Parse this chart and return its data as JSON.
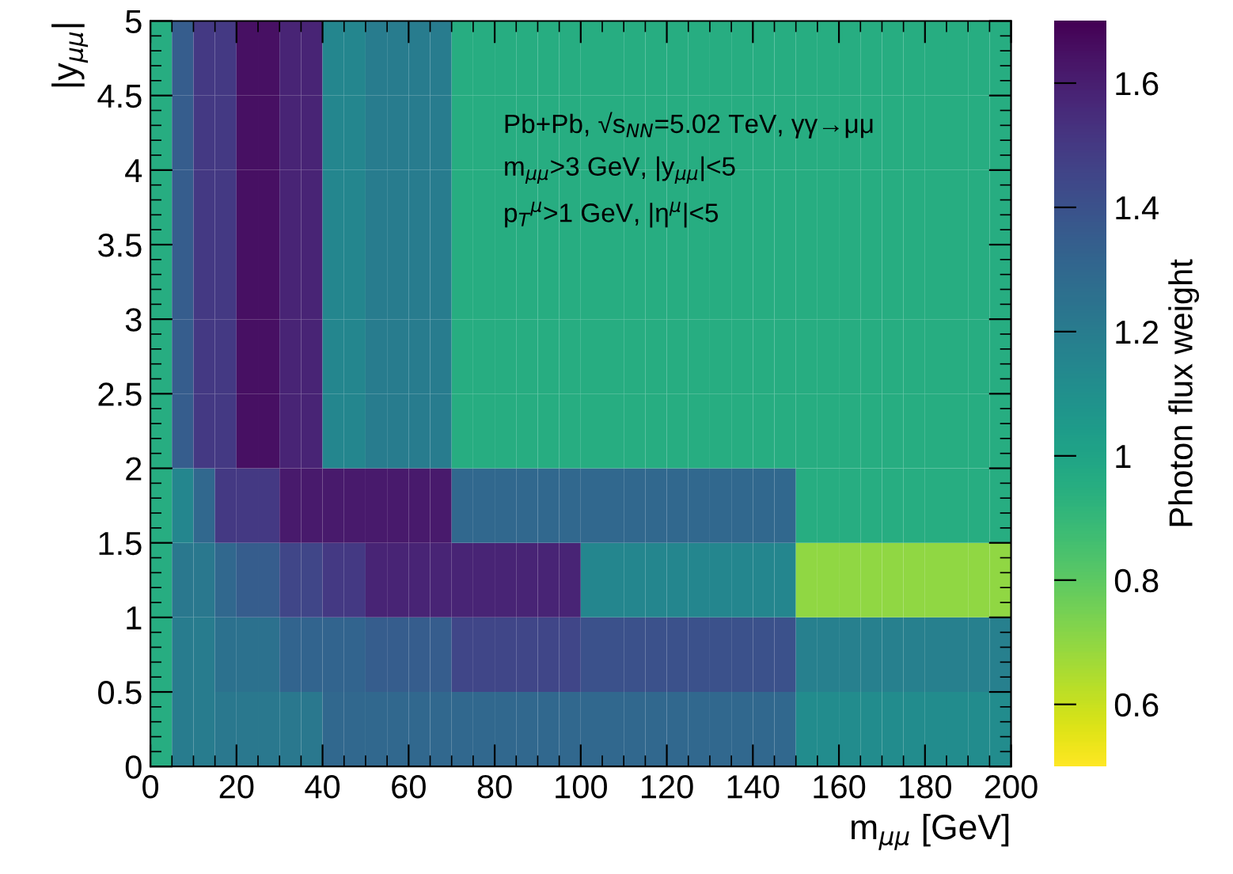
{
  "chart_data": {
    "type": "heatmap",
    "xlabel": "m$_{μμ}$ [GeV]",
    "ylabel": "|y$_{μμ}$|",
    "clabel": "Photon flux weight",
    "cells": [
      [
        0.95,
        1.35,
        1.5,
        1.5,
        1.65,
        1.65,
        1.58,
        1.58,
        1.15,
        1.15,
        1.2,
        1.2,
        1.2,
        1.2,
        0.95,
        0.95,
        0.95,
        0.95,
        0.95,
        0.95,
        0.95,
        0.95,
        0.95,
        0.95,
        0.95,
        0.95,
        0.95,
        0.95,
        0.95,
        0.95,
        0.95,
        0.95,
        0.95,
        0.95,
        0.95,
        0.95,
        0.95,
        0.95,
        0.95,
        0.95
      ],
      [
        0.95,
        1.35,
        1.5,
        1.5,
        1.65,
        1.65,
        1.58,
        1.58,
        1.15,
        1.15,
        1.2,
        1.2,
        1.2,
        1.2,
        0.95,
        0.95,
        0.95,
        0.95,
        0.95,
        0.95,
        0.95,
        0.95,
        0.95,
        0.95,
        0.95,
        0.95,
        0.95,
        0.95,
        0.95,
        0.95,
        0.95,
        0.95,
        0.95,
        0.95,
        0.95,
        0.95,
        0.95,
        0.95,
        0.95,
        0.95
      ],
      [
        0.95,
        1.35,
        1.5,
        1.5,
        1.65,
        1.65,
        1.58,
        1.58,
        1.15,
        1.15,
        1.2,
        1.2,
        1.2,
        1.2,
        0.95,
        0.95,
        0.95,
        0.95,
        0.95,
        0.95,
        0.95,
        0.95,
        0.95,
        0.95,
        0.95,
        0.95,
        0.95,
        0.95,
        0.95,
        0.95,
        0.95,
        0.95,
        0.95,
        0.95,
        0.95,
        0.95,
        0.95,
        0.95,
        0.95,
        0.95
      ],
      [
        0.95,
        1.35,
        1.5,
        1.5,
        1.65,
        1.65,
        1.58,
        1.58,
        1.15,
        1.15,
        1.2,
        1.2,
        1.2,
        1.2,
        0.95,
        0.95,
        0.95,
        0.95,
        0.95,
        0.95,
        0.95,
        0.95,
        0.95,
        0.95,
        0.95,
        0.95,
        0.95,
        0.95,
        0.95,
        0.95,
        0.95,
        0.95,
        0.95,
        0.95,
        0.95,
        0.95,
        0.95,
        0.95,
        0.95,
        0.95
      ],
      [
        0.95,
        1.35,
        1.5,
        1.5,
        1.65,
        1.65,
        1.58,
        1.58,
        1.15,
        1.15,
        1.2,
        1.2,
        1.2,
        1.2,
        0.95,
        0.95,
        0.95,
        0.95,
        0.95,
        0.95,
        0.95,
        0.95,
        0.95,
        0.95,
        0.95,
        0.95,
        0.95,
        0.95,
        0.95,
        0.95,
        0.95,
        0.95,
        0.95,
        0.95,
        0.95,
        0.95,
        0.95,
        0.95,
        0.95,
        0.95
      ],
      [
        0.95,
        1.35,
        1.5,
        1.5,
        1.65,
        1.65,
        1.58,
        1.58,
        1.15,
        1.15,
        1.2,
        1.2,
        1.2,
        1.2,
        0.95,
        0.95,
        0.95,
        0.95,
        0.95,
        0.95,
        0.95,
        0.95,
        0.95,
        0.95,
        0.95,
        0.95,
        0.95,
        0.95,
        0.95,
        0.95,
        0.95,
        0.95,
        0.95,
        0.95,
        0.95,
        0.95,
        0.95,
        0.95,
        0.95,
        0.95
      ],
      [
        0.95,
        1.15,
        1.3,
        1.5,
        1.5,
        1.5,
        1.62,
        1.62,
        1.62,
        1.62,
        1.62,
        1.62,
        1.62,
        1.62,
        1.3,
        1.3,
        1.3,
        1.3,
        1.3,
        1.3,
        1.3,
        1.3,
        1.3,
        1.3,
        1.3,
        1.3,
        1.3,
        1.3,
        1.3,
        1.3,
        0.95,
        0.95,
        0.95,
        0.95,
        0.95,
        0.95,
        0.95,
        0.95,
        0.95,
        0.95
      ],
      [
        0.95,
        1.22,
        1.22,
        1.3,
        1.35,
        1.35,
        1.45,
        1.45,
        1.5,
        1.5,
        1.58,
        1.58,
        1.58,
        1.58,
        1.58,
        1.58,
        1.58,
        1.58,
        1.58,
        1.58,
        1.15,
        1.15,
        1.15,
        1.15,
        1.15,
        1.15,
        1.15,
        1.15,
        1.15,
        1.15,
        0.7,
        0.7,
        0.7,
        0.7,
        0.7,
        0.7,
        0.7,
        0.7,
        0.7,
        0.7
      ],
      [
        0.95,
        1.2,
        1.2,
        1.25,
        1.25,
        1.25,
        1.32,
        1.32,
        1.32,
        1.32,
        1.35,
        1.35,
        1.35,
        1.35,
        1.45,
        1.45,
        1.45,
        1.45,
        1.45,
        1.45,
        1.4,
        1.4,
        1.4,
        1.4,
        1.4,
        1.4,
        1.4,
        1.4,
        1.4,
        1.4,
        1.18,
        1.18,
        1.18,
        1.18,
        1.18,
        1.18,
        1.18,
        1.18,
        1.18,
        1.18
      ],
      [
        0.95,
        1.2,
        1.2,
        1.22,
        1.22,
        1.22,
        1.22,
        1.22,
        1.3,
        1.3,
        1.3,
        1.3,
        1.3,
        1.3,
        1.3,
        1.3,
        1.3,
        1.3,
        1.3,
        1.3,
        1.3,
        1.3,
        1.3,
        1.3,
        1.3,
        1.3,
        1.3,
        1.3,
        1.3,
        1.3,
        1.12,
        1.12,
        1.12,
        1.12,
        1.12,
        1.12,
        1.12,
        1.12,
        1.12,
        1.12
      ]
    ],
    "xlim": [
      0,
      200
    ],
    "xticks": [
      0,
      20,
      40,
      60,
      80,
      100,
      120,
      140,
      160,
      180,
      200
    ],
    "ylim": [
      0,
      5
    ],
    "yticks": [
      0,
      0.5,
      1,
      1.5,
      2,
      2.5,
      3,
      3.5,
      4,
      4.5,
      5
    ],
    "clim": [
      0.5,
      1.7
    ],
    "cticks": [
      0.6,
      0.8,
      1,
      1.2,
      1.4,
      1.6
    ],
    "annotations": [
      "Pb+Pb, √s$_{NN}$=5.02 TeV, γγ→μμ",
      "m$_{μμ}$>3 GeV, |y$_{μμ}$|<5",
      "p$_{T}$$^{μ}$>1 GeV, |η$^{μ}$|<5"
    ]
  }
}
